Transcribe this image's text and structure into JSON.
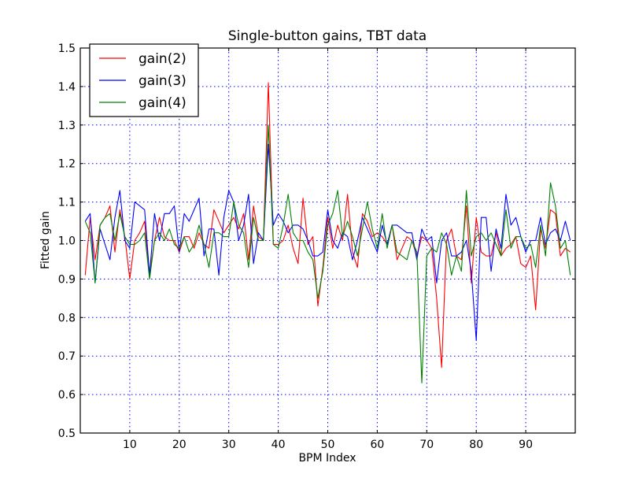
{
  "chart_data": {
    "type": "line",
    "title": "Single-button gains, TBT data",
    "xlabel": "BPM Index",
    "ylabel": "Fitted gain",
    "xlim": [
      0,
      100
    ],
    "ylim": [
      0.5,
      1.5
    ],
    "xticks": [
      10,
      20,
      30,
      40,
      50,
      60,
      70,
      80,
      90
    ],
    "yticks": [
      0.5,
      0.6,
      0.7,
      0.8,
      0.9,
      1.0,
      1.1,
      1.2,
      1.3,
      1.4,
      1.5
    ],
    "grid": true,
    "legend_position": "upper-left",
    "x": [
      1,
      2,
      3,
      4,
      5,
      6,
      7,
      8,
      9,
      10,
      11,
      12,
      13,
      14,
      15,
      16,
      17,
      18,
      19,
      20,
      21,
      22,
      23,
      24,
      25,
      26,
      27,
      28,
      29,
      30,
      31,
      32,
      33,
      34,
      35,
      36,
      37,
      38,
      39,
      40,
      41,
      42,
      43,
      44,
      45,
      46,
      47,
      48,
      49,
      50,
      51,
      52,
      53,
      54,
      55,
      56,
      57,
      58,
      59,
      60,
      61,
      62,
      63,
      64,
      65,
      66,
      67,
      68,
      69,
      70,
      71,
      72,
      73,
      74,
      75,
      76,
      77,
      78,
      79,
      80,
      81,
      82,
      83,
      84,
      85,
      86,
      87,
      88,
      89,
      90,
      91,
      92,
      93,
      94,
      95,
      96,
      97,
      98,
      99
    ],
    "series": [
      {
        "name": "gain(2)",
        "color": "#ff0000",
        "values": [
          0.91,
          1.06,
          0.95,
          1.04,
          1.06,
          1.09,
          0.97,
          1.08,
          1.01,
          0.9,
          1.0,
          1.02,
          1.05,
          0.91,
          1.0,
          1.06,
          1.01,
          1.0,
          1.0,
          0.97,
          1.01,
          1.01,
          0.98,
          1.02,
          0.99,
          0.98,
          1.08,
          1.05,
          1.02,
          1.04,
          1.06,
          1.03,
          1.07,
          0.95,
          1.09,
          1.01,
          1.0,
          1.41,
          0.99,
          0.99,
          1.0,
          1.04,
          0.98,
          0.94,
          1.11,
          0.99,
          1.01,
          0.83,
          0.93,
          1.06,
          0.98,
          1.04,
          1.0,
          1.12,
          0.97,
          0.93,
          1.07,
          1.05,
          1.01,
          1.02,
          1.01,
          0.99,
          1.04,
          0.95,
          0.98,
          1.01,
          1.0,
          0.96,
          1.01,
          1.0,
          0.98,
          0.85,
          0.67,
          1.0,
          1.03,
          0.96,
          0.95,
          1.09,
          0.89,
          1.06,
          0.97,
          0.96,
          0.96,
          1.02,
          0.96,
          0.98,
          0.99,
          1.01,
          0.94,
          0.93,
          0.96,
          0.82,
          1.03,
          0.98,
          1.08,
          1.07,
          0.96,
          0.98,
          0.97
        ]
      },
      {
        "name": "gain(3)",
        "color": "#0000ff",
        "values": [
          1.05,
          1.07,
          0.89,
          1.03,
          0.99,
          0.95,
          1.06,
          1.13,
          1.0,
          0.98,
          1.1,
          1.09,
          1.08,
          0.91,
          1.07,
          1.0,
          1.07,
          1.07,
          1.09,
          0.97,
          1.07,
          1.05,
          1.08,
          1.11,
          0.96,
          1.03,
          1.03,
          0.91,
          1.06,
          1.13,
          1.1,
          1.0,
          1.04,
          1.12,
          0.94,
          1.02,
          1.0,
          1.25,
          1.04,
          1.07,
          1.05,
          1.02,
          1.04,
          1.04,
          1.03,
          1.0,
          0.96,
          0.96,
          0.97,
          1.08,
          1.0,
          0.98,
          1.02,
          1.01,
          0.95,
          1.0,
          1.06,
          1.03,
          1.0,
          0.97,
          1.04,
          0.99,
          1.04,
          1.04,
          1.03,
          1.02,
          1.02,
          0.95,
          1.03,
          1.0,
          1.01,
          0.89,
          1.0,
          1.02,
          0.96,
          0.96,
          0.97,
          1.0,
          0.92,
          0.74,
          1.06,
          1.06,
          0.92,
          1.03,
          0.98,
          1.12,
          1.04,
          1.06,
          1.01,
          0.97,
          1.0,
          1.0,
          1.06,
          0.99,
          1.02,
          1.03,
          1.0,
          1.05,
          1.0
        ]
      },
      {
        "name": "gain(4)",
        "color": "#008000",
        "values": [
          1.05,
          1.02,
          0.89,
          1.04,
          1.06,
          1.07,
          1.0,
          1.07,
          1.01,
          0.99,
          0.99,
          1.0,
          1.02,
          0.9,
          1.0,
          1.02,
          1.0,
          1.03,
          0.99,
          0.98,
          1.01,
          0.97,
          0.99,
          1.04,
          0.99,
          0.93,
          1.02,
          1.02,
          1.01,
          1.01,
          1.1,
          1.04,
          1.02,
          0.93,
          1.06,
          1.0,
          1.0,
          1.3,
          0.99,
          0.98,
          1.04,
          1.12,
          1.02,
          1.0,
          1.0,
          0.97,
          0.95,
          0.85,
          0.92,
          1.04,
          1.07,
          1.13,
          1.01,
          1.05,
          1.01,
          0.96,
          1.03,
          1.1,
          1.03,
          0.98,
          1.07,
          0.98,
          1.04,
          0.97,
          0.96,
          0.95,
          1.0,
          0.97,
          0.63,
          0.96,
          0.98,
          0.97,
          1.02,
          0.99,
          0.91,
          0.96,
          0.92,
          1.13,
          0.96,
          1.01,
          1.02,
          1.0,
          1.02,
          0.99,
          0.96,
          1.08,
          0.98,
          1.01,
          1.01,
          0.98,
          0.99,
          0.93,
          1.04,
          0.96,
          1.15,
          1.09,
          0.98,
          1.0,
          0.91
        ]
      }
    ]
  }
}
